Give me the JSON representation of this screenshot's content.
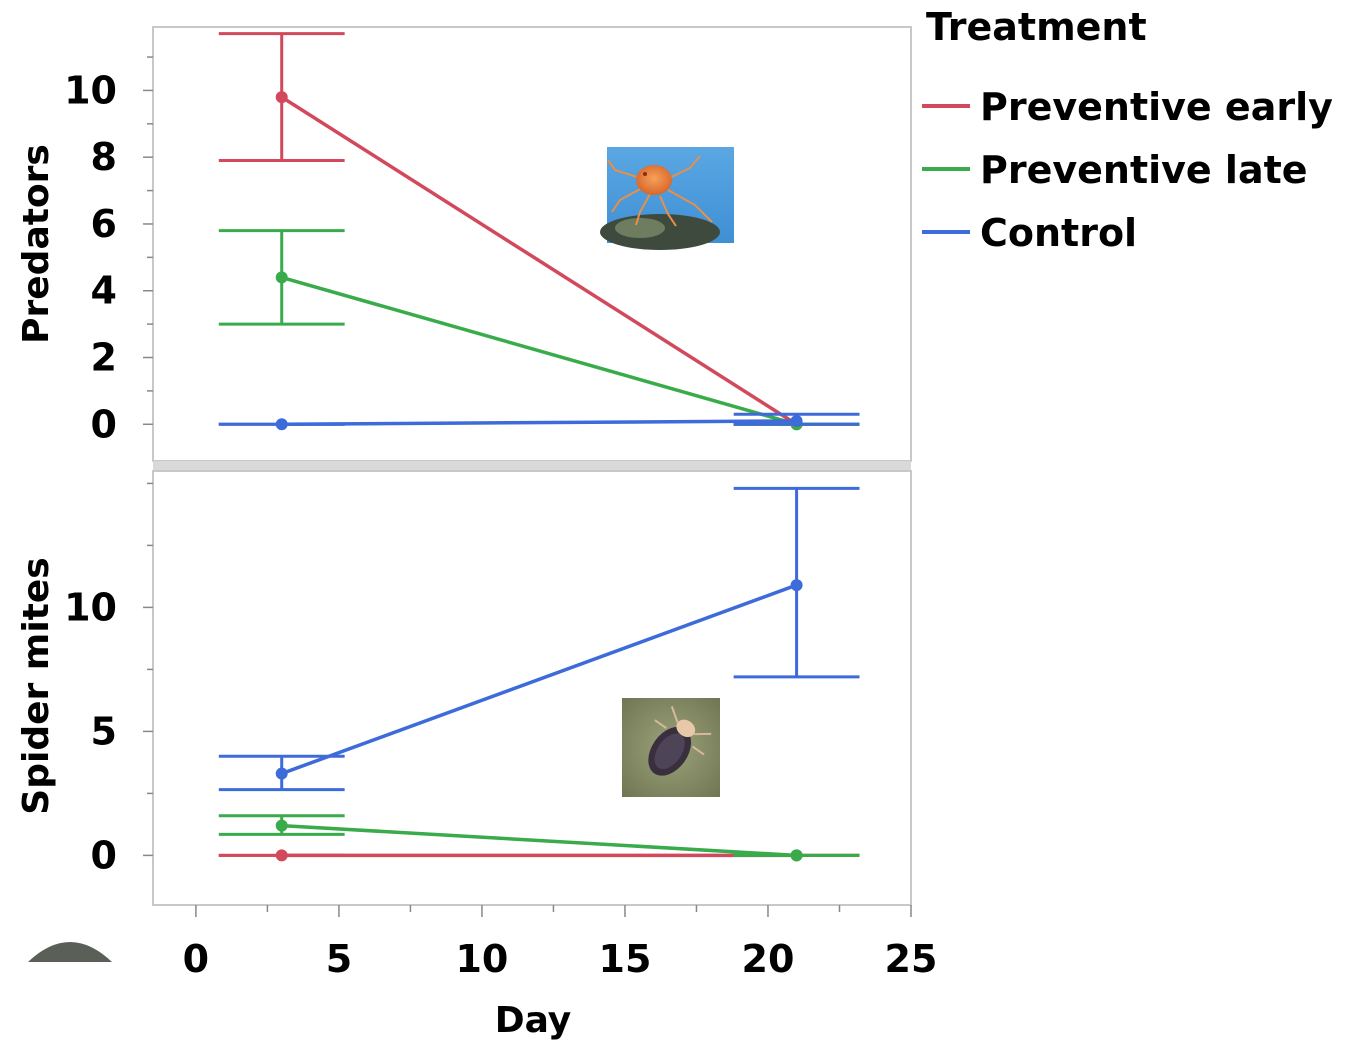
{
  "chart_data": [
    {
      "type": "line",
      "ylabel": "Predators",
      "xlim": [
        -1.5,
        25
      ],
      "ylim": [
        -1.1,
        11.9
      ],
      "y_ticks": [
        0,
        2,
        4,
        6,
        8,
        10
      ],
      "error_bars": true,
      "series": [
        {
          "name": "Preventive early",
          "color": "#d1495b",
          "points": [
            {
              "x": 3,
              "y": 9.8,
              "lo": 7.9,
              "hi": 11.7
            },
            {
              "x": 21,
              "y": 0,
              "lo": 0,
              "hi": 0
            }
          ]
        },
        {
          "name": "Preventive late",
          "color": "#3aab4a",
          "points": [
            {
              "x": 3,
              "y": 4.4,
              "lo": 3.0,
              "hi": 5.8
            },
            {
              "x": 21,
              "y": 0,
              "lo": 0,
              "hi": 0
            }
          ]
        },
        {
          "name": "Control",
          "color": "#3d6bd9",
          "points": [
            {
              "x": 3,
              "y": 0,
              "lo": 0,
              "hi": 0
            },
            {
              "x": 21,
              "y": 0.1,
              "lo": 0,
              "hi": 0.3
            }
          ]
        }
      ]
    },
    {
      "type": "line",
      "ylabel": "Spider mites",
      "xlabel": "Day",
      "xlim": [
        -1.5,
        25
      ],
      "ylim": [
        -2,
        15.5
      ],
      "x_ticks": [
        0,
        5,
        10,
        15,
        20,
        25
      ],
      "y_ticks": [
        0,
        5,
        10
      ],
      "error_bars": true,
      "series": [
        {
          "name": "Preventive early",
          "color": "#d1495b",
          "points": [
            {
              "x": 3,
              "y": 0,
              "lo": 0,
              "hi": 0
            },
            {
              "x": 21,
              "y": 0,
              "lo": 0,
              "hi": 0
            }
          ]
        },
        {
          "name": "Preventive late",
          "color": "#3aab4a",
          "points": [
            {
              "x": 3,
              "y": 1.2,
              "lo": 0.85,
              "hi": 1.6
            },
            {
              "x": 21,
              "y": 0,
              "lo": 0,
              "hi": 0
            }
          ]
        },
        {
          "name": "Control",
          "color": "#3d6bd9",
          "points": [
            {
              "x": 3,
              "y": 3.3,
              "lo": 2.65,
              "hi": 4.0
            },
            {
              "x": 21,
              "y": 10.9,
              "lo": 7.2,
              "hi": 14.8
            }
          ]
        }
      ]
    }
  ],
  "legend": {
    "title": "Treatment",
    "placement": "right",
    "items": [
      {
        "label": "Preventive early",
        "color": "#d1495b"
      },
      {
        "label": "Preventive late",
        "color": "#3aab4a"
      },
      {
        "label": "Control",
        "color": "#3d6bd9"
      }
    ]
  },
  "images": {
    "top_panel": "predatory-mite-photo",
    "bottom_panel": "spider-mite-photo"
  }
}
